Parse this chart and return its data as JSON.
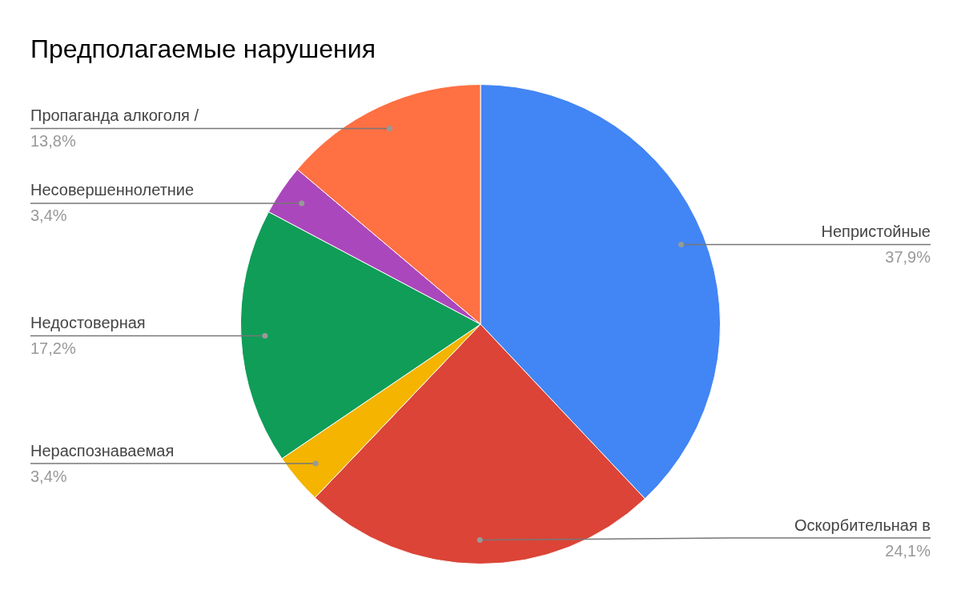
{
  "chart_data": {
    "type": "pie",
    "title": "Предполагаемые нарушения",
    "categories": [
      "Непристойные",
      "Оскорбительная в",
      "Нераспознаваемая",
      "Недостоверная",
      "Несовершеннолетние",
      "Пропаганда алкоголя /"
    ],
    "values": [
      37.9,
      24.1,
      3.4,
      17.2,
      3.4,
      13.8
    ],
    "colors": [
      "#4285f4",
      "#db4437",
      "#f4b400",
      "#0f9d58",
      "#ab47bc",
      "#ff7043"
    ],
    "value_labels": [
      "37,9%",
      "24,1%",
      "3,4%",
      "17,2%",
      "3,4%",
      "13,8%"
    ],
    "legend": false
  }
}
